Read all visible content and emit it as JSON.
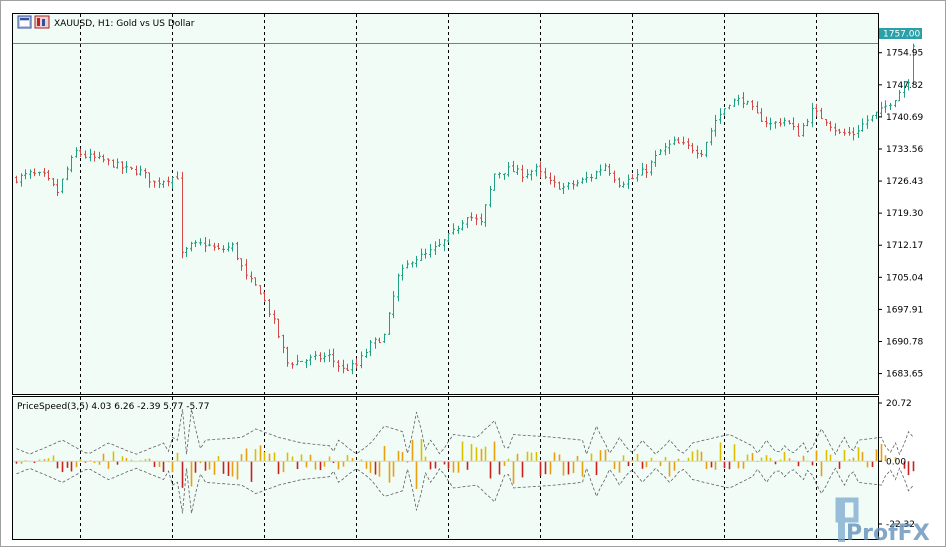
{
  "window": {
    "title": "XAUUSD, H1:  Gold vs US Dollar"
  },
  "indicator": {
    "label": "PriceSpeed(3,5) 4.03 6.26 -2.39 5.77 -5.77"
  },
  "current_price_label": "1757.00",
  "watermark": {
    "text": "ProfFX"
  },
  "colors": {
    "background": "#f2fcf6",
    "bull_candle": "#20a080",
    "bear_candle": "#d04848",
    "bid_line": "#2aa0a8",
    "grid_separator": "#000000",
    "osc_positive": "#e8a010",
    "osc_yellow": "#d8c000",
    "osc_negative": "#cc2020",
    "envelope": "#606060"
  },
  "chart_data": [
    {
      "type": "candlestick",
      "symbol": "XAUUSD",
      "timeframe": "H1",
      "y_ticks": [
        "1754.95",
        "1747.82",
        "1740.69",
        "1733.56",
        "1726.43",
        "1719.30",
        "1712.17",
        "1705.04",
        "1697.91",
        "1690.78",
        "1683.65"
      ],
      "ylim": [
        1680.0,
        1760.0
      ],
      "current_price": 1757.0,
      "close_path": [
        [
          0,
          1727.0
        ],
        [
          3,
          1728.0
        ],
        [
          6,
          1727.5
        ],
        [
          9,
          1724.0
        ],
        [
          11,
          1729.0
        ],
        [
          13,
          1733.0
        ],
        [
          15,
          1732.0
        ],
        [
          19,
          1731.0
        ],
        [
          24,
          1729.0
        ],
        [
          27,
          1728.5
        ],
        [
          30,
          1726.0
        ],
        [
          33,
          1727.0
        ],
        [
          35,
          1727.5
        ],
        [
          36,
          1710.0
        ],
        [
          38,
          1712.0
        ],
        [
          41,
          1712.5
        ],
        [
          44,
          1711.0
        ],
        [
          47,
          1712.0
        ],
        [
          50,
          1705.0
        ],
        [
          53,
          1702.0
        ],
        [
          56,
          1695.0
        ],
        [
          59,
          1686.0
        ],
        [
          62,
          1686.5
        ],
        [
          65,
          1687.0
        ],
        [
          68,
          1687.5
        ],
        [
          71,
          1684.5
        ],
        [
          74,
          1685.5
        ],
        [
          77,
          1690.0
        ],
        [
          80,
          1692.0
        ],
        [
          83,
          1705.0
        ],
        [
          86,
          1709.0
        ],
        [
          89,
          1710.0
        ],
        [
          92,
          1712.0
        ],
        [
          95,
          1715.0
        ],
        [
          98,
          1719.0
        ],
        [
          101,
          1717.0
        ],
        [
          104,
          1728.0
        ],
        [
          107,
          1729.0
        ],
        [
          110,
          1728.0
        ],
        [
          113,
          1729.0
        ],
        [
          116,
          1726.0
        ],
        [
          119,
          1725.0
        ],
        [
          122,
          1726.0
        ],
        [
          125,
          1727.5
        ],
        [
          128,
          1730.0
        ],
        [
          131,
          1726.0
        ],
        [
          134,
          1727.0
        ],
        [
          137,
          1729.0
        ],
        [
          140,
          1733.0
        ],
        [
          143,
          1735.0
        ],
        [
          146,
          1734.0
        ],
        [
          149,
          1733.0
        ],
        [
          152,
          1740.0
        ],
        [
          155,
          1744.0
        ],
        [
          158,
          1744.5
        ],
        [
          161,
          1741.0
        ],
        [
          164,
          1739.0
        ],
        [
          167,
          1740.0
        ],
        [
          170,
          1737.0
        ],
        [
          173,
          1742.0
        ],
        [
          176,
          1740.0
        ],
        [
          179,
          1737.0
        ],
        [
          182,
          1737.0
        ],
        [
          185,
          1740.0
        ],
        [
          188,
          1742.0
        ],
        [
          191,
          1745.0
        ],
        [
          194,
          1749.0
        ],
        [
          195,
          1757.0
        ]
      ]
    },
    {
      "type": "bar",
      "indicator": "PriceSpeed(3,5)",
      "values_shown": [
        4.03,
        6.26,
        -2.39,
        5.77,
        -5.77
      ],
      "y_ticks": [
        "20.72",
        "0.00",
        "-22.32"
      ],
      "ylim": [
        -22.32,
        20.72
      ],
      "spikes": [
        [
          0,
          2
        ],
        [
          10,
          -5
        ],
        [
          20,
          4
        ],
        [
          32,
          -4
        ],
        [
          34,
          6
        ],
        [
          36,
          -16
        ],
        [
          38,
          16
        ],
        [
          41,
          -5
        ],
        [
          49,
          -6
        ],
        [
          52,
          -9
        ],
        [
          57,
          -6
        ],
        [
          62,
          -4
        ],
        [
          68,
          -3
        ],
        [
          70,
          5
        ],
        [
          77,
          -4
        ],
        [
          80,
          -10
        ],
        [
          84,
          -8
        ],
        [
          87,
          15
        ],
        [
          90,
          -5
        ],
        [
          95,
          7
        ],
        [
          100,
          6
        ],
        [
          104,
          12
        ],
        [
          108,
          -7
        ],
        [
          117,
          -6
        ],
        [
          123,
          -5
        ],
        [
          126,
          10
        ],
        [
          131,
          -6
        ],
        [
          136,
          5
        ],
        [
          142,
          -5
        ],
        [
          147,
          4
        ],
        [
          152,
          6
        ],
        [
          155,
          7
        ],
        [
          160,
          3
        ],
        [
          163,
          -5
        ],
        [
          167,
          3
        ],
        [
          171,
          -4
        ],
        [
          175,
          9
        ],
        [
          180,
          -6
        ],
        [
          183,
          5
        ],
        [
          188,
          6
        ],
        [
          191,
          -4
        ],
        [
          194,
          8
        ],
        [
          195,
          6
        ]
      ]
    }
  ]
}
